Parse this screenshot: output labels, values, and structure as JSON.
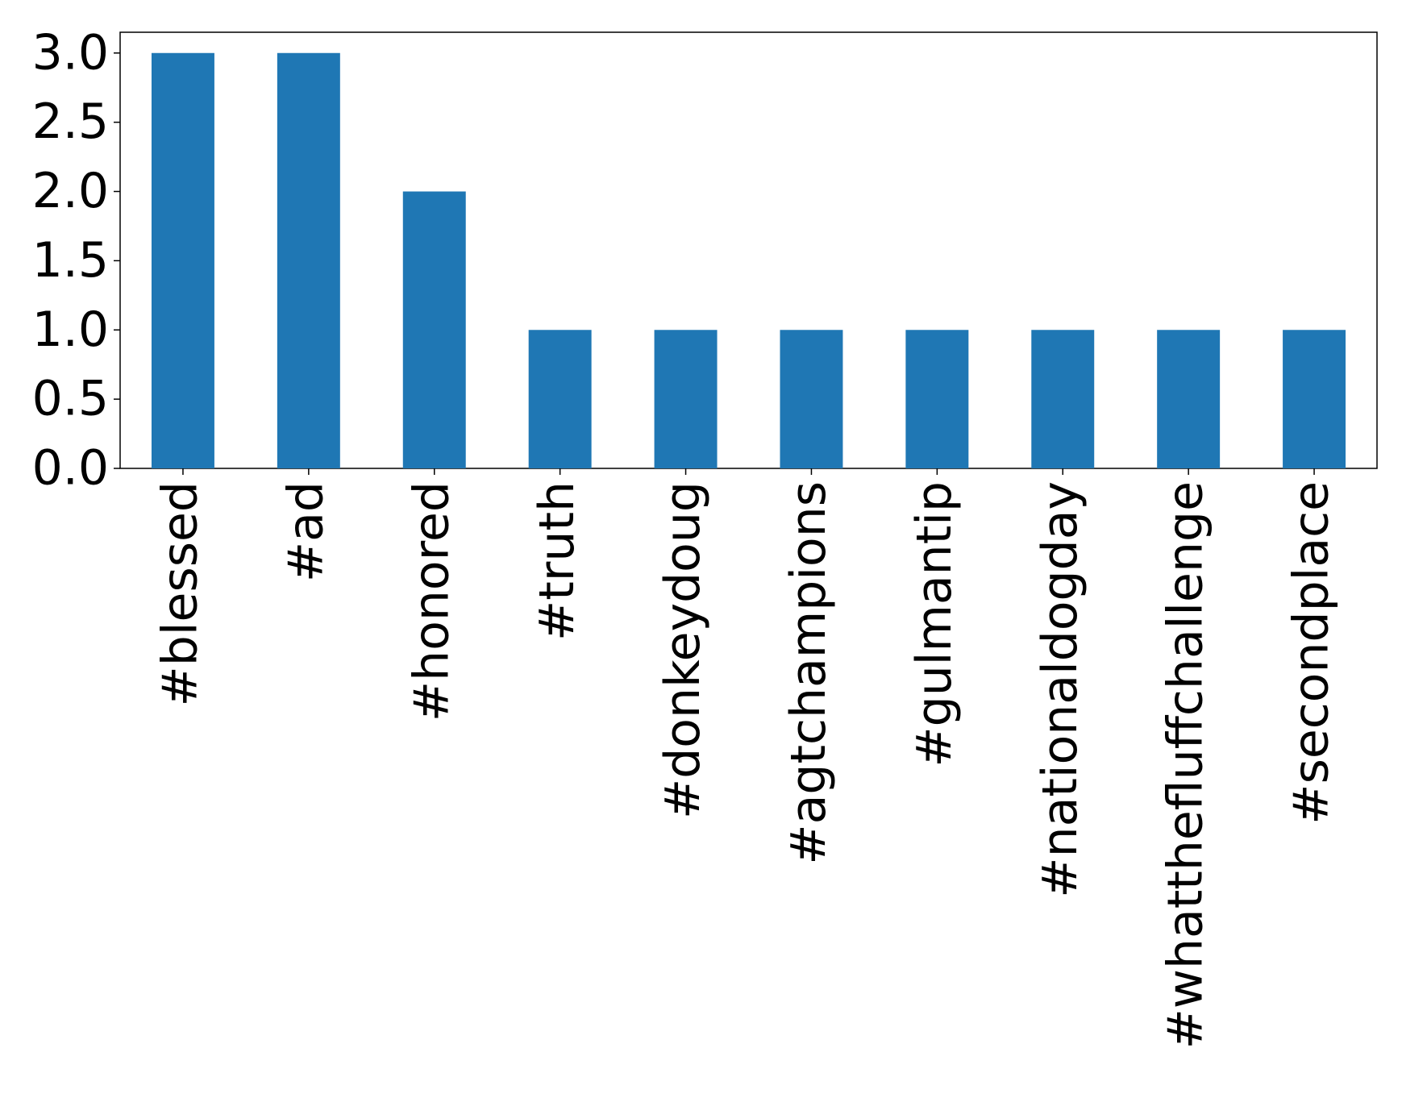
{
  "chart_data": {
    "type": "bar",
    "categories": [
      "#blessed",
      "#ad",
      "#honored",
      "#truth",
      "#donkeydoug",
      "#agtchampions",
      "#gulmantip",
      "#nationaldogday",
      "#whatthefluffchallenge",
      "#secondplace"
    ],
    "values": [
      3,
      3,
      2,
      1,
      1,
      1,
      1,
      1,
      1,
      1
    ],
    "color": "#1f77b4",
    "ylim": [
      0,
      3.15
    ],
    "yticks": [
      {
        "value": 0,
        "label": "0.0"
      },
      {
        "value": 0.5,
        "label": "0.5"
      },
      {
        "value": 1,
        "label": "1.0"
      },
      {
        "value": 1.5,
        "label": "1.5"
      },
      {
        "value": 2,
        "label": "2.0"
      },
      {
        "value": 2.5,
        "label": "2.5"
      },
      {
        "value": 3,
        "label": "3.0"
      }
    ],
    "grid": false
  }
}
